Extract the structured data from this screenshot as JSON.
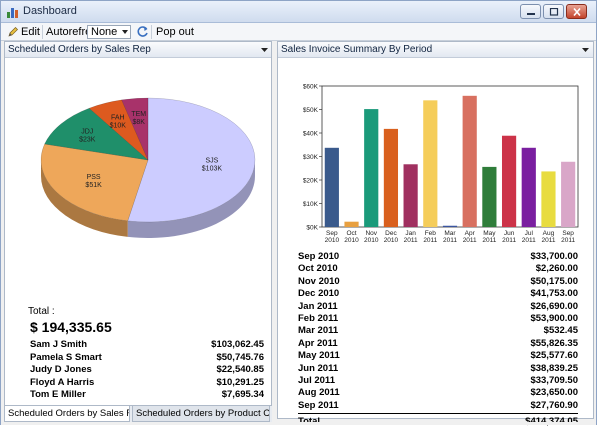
{
  "window": {
    "title": "Dashboard",
    "icon": "chart-icon"
  },
  "toolbar": {
    "edit_label": "Edit",
    "autorefresh_label": "Autorefresh",
    "autorefresh_value": "None",
    "popout_label": "Pop out"
  },
  "left_panel": {
    "title": "Scheduled Orders by Sales Rep",
    "total_label": "Total :",
    "total_value": "$ 194,335.65",
    "rows": [
      {
        "name": "Sam J Smith",
        "value": "$103,062.45"
      },
      {
        "name": "Pamela S Smart",
        "value": "$50,745.76"
      },
      {
        "name": "Judy D Jones",
        "value": "$22,540.85"
      },
      {
        "name": "Floyd A Harris",
        "value": "$10,291.25"
      },
      {
        "name": "Tom E Miller",
        "value": "$7,695.34"
      }
    ],
    "tabs": [
      {
        "label": "Scheduled Orders by Sales Rep",
        "active": true
      },
      {
        "label": "Scheduled Orders by Product Cla...",
        "active": false
      }
    ]
  },
  "right_panel": {
    "title": "Sales Invoice Summary By Period",
    "rows": [
      {
        "period": "Sep 2010",
        "value": "$33,700.00"
      },
      {
        "period": "Oct 2010",
        "value": "$2,260.00"
      },
      {
        "period": "Nov 2010",
        "value": "$50,175.00"
      },
      {
        "period": "Dec 2010",
        "value": "$41,753.00"
      },
      {
        "period": "Jan 2011",
        "value": "$26,690.00"
      },
      {
        "period": "Feb 2011",
        "value": "$53,900.00"
      },
      {
        "period": "Mar 2011",
        "value": "$532.45"
      },
      {
        "period": "Apr 2011",
        "value": "$55,826.35"
      },
      {
        "period": "May 2011",
        "value": "$25,577.60"
      },
      {
        "period": "Jun 2011",
        "value": "$38,839.25"
      },
      {
        "period": "Jul 2011",
        "value": "$33,709.50"
      },
      {
        "period": "Aug 2011",
        "value": "$23,650.00"
      },
      {
        "period": "Sep 2011",
        "value": "$27,760.90"
      }
    ],
    "total_label": "Total",
    "total_value": "$414,374.05"
  },
  "chart_data": [
    {
      "type": "pie",
      "title": "",
      "slices": [
        {
          "label": "SJS",
          "value_label": "$103K",
          "value": 103062.45,
          "color": "#ccccff"
        },
        {
          "label": "PSS",
          "value_label": "$51K",
          "value": 50745.76,
          "color": "#eea75a"
        },
        {
          "label": "JDJ",
          "value_label": "$23K",
          "value": 22540.85,
          "color": "#1f8f6a"
        },
        {
          "label": "FAH",
          "value_label": "$10K",
          "value": 10291.25,
          "color": "#dd5a1f"
        },
        {
          "label": "TEM",
          "value_label": "$8K",
          "value": 7695.34,
          "color": "#a8326a"
        }
      ]
    },
    {
      "type": "bar",
      "title": "",
      "categories": [
        "Sep 2010",
        "Oct 2010",
        "Nov 2010",
        "Dec 2010",
        "Jan 2011",
        "Feb 2011",
        "Mar 2011",
        "Apr 2011",
        "May 2011",
        "Jun 2011",
        "Jul 2011",
        "Aug 2011",
        "Sep 2011"
      ],
      "category_lines": [
        [
          "Sep",
          "2010"
        ],
        [
          "Oct",
          "2010"
        ],
        [
          "Nov",
          "2010"
        ],
        [
          "Dec",
          "2010"
        ],
        [
          "Jan",
          "2011"
        ],
        [
          "Feb",
          "2011"
        ],
        [
          "Mar",
          "2011"
        ],
        [
          "Apr",
          "2011"
        ],
        [
          "May",
          "2011"
        ],
        [
          "Jun",
          "2011"
        ],
        [
          "Jul",
          "2011"
        ],
        [
          "Aug",
          "2011"
        ],
        [
          "Sep",
          "2011"
        ]
      ],
      "values": [
        33700.0,
        2260.0,
        50175.0,
        41753.0,
        26690.0,
        53900.0,
        532.45,
        55826.35,
        25577.6,
        38839.25,
        33709.5,
        23650.0,
        27760.9
      ],
      "colors": [
        "#3a5a8c",
        "#e8a040",
        "#1a9a7a",
        "#d9601e",
        "#a03060",
        "#f5cd5a",
        "#3a55a0",
        "#d87060",
        "#2f7d3a",
        "#cc3348",
        "#7a1fa0",
        "#e8dc40",
        "#d9a6c8"
      ],
      "ylim": [
        0,
        60000
      ],
      "yticks": [
        0,
        10000,
        20000,
        30000,
        40000,
        50000,
        60000
      ],
      "ytick_labels": [
        "$0K",
        "$10K",
        "$20K",
        "$30K",
        "$40K",
        "$50K",
        "$60K"
      ],
      "xlabel": "",
      "ylabel": "",
      "grid": false,
      "legend": "none"
    }
  ]
}
